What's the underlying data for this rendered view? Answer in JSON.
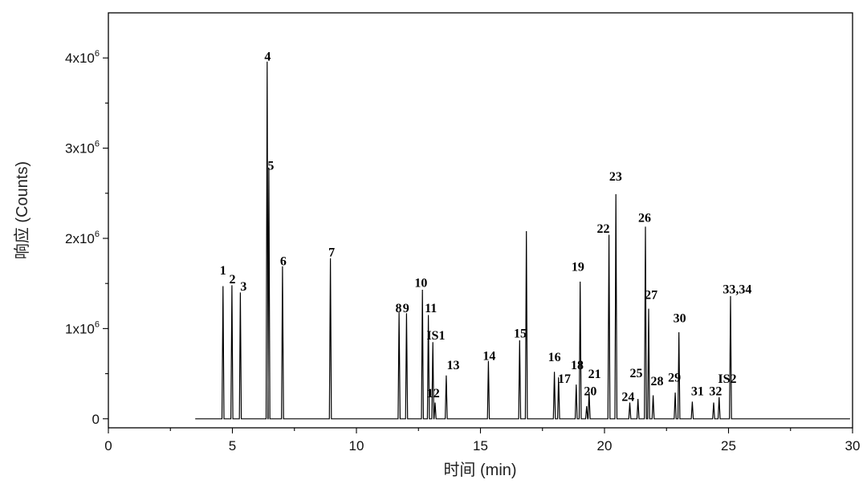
{
  "chart_data": {
    "type": "line",
    "xlabel": "时间 (min)",
    "ylabel": "响应 (Counts)",
    "xlim": [
      0,
      30
    ],
    "ylim": [
      -100000,
      4500000
    ],
    "x_ticks": [
      0,
      5,
      10,
      15,
      20,
      25,
      30
    ],
    "y_ticks": [
      {
        "value": 0,
        "mant": "0",
        "exp": ""
      },
      {
        "value": 1000000,
        "mant": "1x10",
        "exp": "6"
      },
      {
        "value": 2000000,
        "mant": "2x10",
        "exp": "6"
      },
      {
        "value": 3000000,
        "mant": "3x10",
        "exp": "6"
      },
      {
        "value": 4000000,
        "mant": "4x10",
        "exp": "6"
      }
    ],
    "grid": false,
    "legend": "none",
    "peaks": [
      {
        "x": 4.62,
        "y": 1470000
      },
      {
        "x": 4.98,
        "y": 1480000
      },
      {
        "x": 5.32,
        "y": 1400000
      },
      {
        "x": 6.4,
        "y": 3960000
      },
      {
        "x": 6.47,
        "y": 2780000
      },
      {
        "x": 7.02,
        "y": 1690000
      },
      {
        "x": 8.95,
        "y": 1780000
      },
      {
        "x": 11.72,
        "y": 1180000
      },
      {
        "x": 12.02,
        "y": 1170000
      },
      {
        "x": 12.66,
        "y": 1430000
      },
      {
        "x": 12.9,
        "y": 1150000
      },
      {
        "x": 13.08,
        "y": 850000
      },
      {
        "x": 13.17,
        "y": 180000
      },
      {
        "x": 13.62,
        "y": 480000
      },
      {
        "x": 15.32,
        "y": 640000
      },
      {
        "x": 16.58,
        "y": 870000
      },
      {
        "x": 16.85,
        "y": 2080000
      },
      {
        "x": 17.98,
        "y": 520000
      },
      {
        "x": 18.15,
        "y": 460000
      },
      {
        "x": 18.86,
        "y": 380000
      },
      {
        "x": 19.02,
        "y": 1520000
      },
      {
        "x": 19.28,
        "y": 140000
      },
      {
        "x": 19.38,
        "y": 300000
      },
      {
        "x": 20.18,
        "y": 2040000
      },
      {
        "x": 20.46,
        "y": 2490000
      },
      {
        "x": 21.02,
        "y": 180000
      },
      {
        "x": 21.35,
        "y": 220000
      },
      {
        "x": 21.65,
        "y": 2130000
      },
      {
        "x": 21.78,
        "y": 1220000
      },
      {
        "x": 21.96,
        "y": 260000
      },
      {
        "x": 22.85,
        "y": 290000
      },
      {
        "x": 23.0,
        "y": 960000
      },
      {
        "x": 23.54,
        "y": 190000
      },
      {
        "x": 24.4,
        "y": 180000
      },
      {
        "x": 24.62,
        "y": 240000
      },
      {
        "x": 25.08,
        "y": 1360000
      }
    ],
    "annotations": [
      {
        "text": "1",
        "x": 4.62,
        "y": 1600000
      },
      {
        "text": "2",
        "x": 5.0,
        "y": 1500000
      },
      {
        "text": "3",
        "x": 5.45,
        "y": 1420000
      },
      {
        "text": "4",
        "x": 6.42,
        "y": 3970000
      },
      {
        "text": "5",
        "x": 6.55,
        "y": 2760000
      },
      {
        "text": "6",
        "x": 7.05,
        "y": 1700000
      },
      {
        "text": "7",
        "x": 9.0,
        "y": 1800000
      },
      {
        "text": "8",
        "x": 11.7,
        "y": 1180000
      },
      {
        "text": "9",
        "x": 12.0,
        "y": 1180000
      },
      {
        "text": "10",
        "x": 12.6,
        "y": 1460000
      },
      {
        "text": "11",
        "x": 13.0,
        "y": 1180000
      },
      {
        "text": "IS1",
        "x": 13.2,
        "y": 880000
      },
      {
        "text": "12",
        "x": 13.1,
        "y": 240000
      },
      {
        "text": "13",
        "x": 13.9,
        "y": 550000
      },
      {
        "text": "14",
        "x": 15.35,
        "y": 650000
      },
      {
        "text": "15",
        "x": 16.6,
        "y": 900000
      },
      {
        "text": "16",
        "x": 17.98,
        "y": 640000
      },
      {
        "text": "17",
        "x": 18.38,
        "y": 400000
      },
      {
        "text": "18",
        "x": 18.9,
        "y": 550000
      },
      {
        "text": "19",
        "x": 18.93,
        "y": 1640000
      },
      {
        "text": "20",
        "x": 19.43,
        "y": 260000
      },
      {
        "text": "21",
        "x": 19.6,
        "y": 450000
      },
      {
        "text": "22",
        "x": 19.95,
        "y": 2060000
      },
      {
        "text": "23",
        "x": 20.45,
        "y": 2640000
      },
      {
        "text": "24",
        "x": 20.95,
        "y": 200000
      },
      {
        "text": "25",
        "x": 21.28,
        "y": 460000
      },
      {
        "text": "26",
        "x": 21.62,
        "y": 2180000
      },
      {
        "text": "27",
        "x": 21.88,
        "y": 1330000
      },
      {
        "text": "28",
        "x": 22.12,
        "y": 370000
      },
      {
        "text": "29",
        "x": 22.82,
        "y": 410000
      },
      {
        "text": "30",
        "x": 23.03,
        "y": 1070000
      },
      {
        "text": "31",
        "x": 23.75,
        "y": 260000
      },
      {
        "text": "32",
        "x": 24.48,
        "y": 260000
      },
      {
        "text": "IS2",
        "x": 24.95,
        "y": 400000
      },
      {
        "text": "33,34",
        "x": 25.35,
        "y": 1390000
      }
    ]
  }
}
